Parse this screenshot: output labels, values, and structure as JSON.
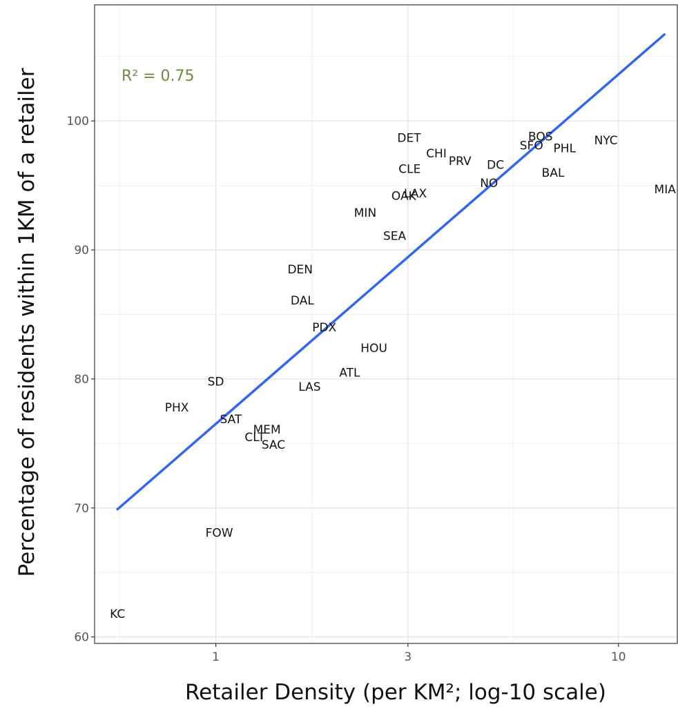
{
  "chart_data": {
    "type": "scatter",
    "xlabel": "Retailer Density (per KM²; log-10 scale)",
    "ylabel": "Percentage of residents within 1KM of a retailer",
    "x_scale": "log10",
    "xlim": [
      0.5,
      14
    ],
    "ylim": [
      59.5,
      109
    ],
    "x_ticks": [
      {
        "value": 1,
        "label": "1"
      },
      {
        "value": 3,
        "label": "3"
      },
      {
        "value": 10,
        "label": "10"
      }
    ],
    "y_ticks": [
      {
        "value": 60,
        "label": "60"
      },
      {
        "value": 70,
        "label": "70"
      },
      {
        "value": 80,
        "label": "80"
      },
      {
        "value": 90,
        "label": "90"
      },
      {
        "value": 100,
        "label": "100"
      }
    ],
    "grid": true,
    "annotation": {
      "text": "R² = 0.75",
      "color": "#6e8b3d"
    },
    "fit_line": {
      "color": "#3366ee",
      "start": [
        0.57,
        69.9
      ],
      "end": [
        13.0,
        106.7
      ]
    },
    "points": [
      {
        "label": "KC",
        "x": 0.57,
        "y": 61.8
      },
      {
        "label": "FOW",
        "x": 1.02,
        "y": 68.1
      },
      {
        "label": "PHX",
        "x": 0.8,
        "y": 77.8
      },
      {
        "label": "SD",
        "x": 1.0,
        "y": 79.8
      },
      {
        "label": "SAT",
        "x": 1.09,
        "y": 76.9
      },
      {
        "label": "MEM",
        "x": 1.34,
        "y": 76.1
      },
      {
        "label": "CLT",
        "x": 1.25,
        "y": 75.5
      },
      {
        "label": "SAC",
        "x": 1.39,
        "y": 74.9
      },
      {
        "label": "LAS",
        "x": 1.71,
        "y": 79.4
      },
      {
        "label": "ATL",
        "x": 2.15,
        "y": 80.5
      },
      {
        "label": "HOU",
        "x": 2.47,
        "y": 82.4
      },
      {
        "label": "PDX",
        "x": 1.86,
        "y": 84.0
      },
      {
        "label": "DAL",
        "x": 1.64,
        "y": 86.1
      },
      {
        "label": "DEN",
        "x": 1.62,
        "y": 88.5
      },
      {
        "label": "SEA",
        "x": 2.78,
        "y": 91.1
      },
      {
        "label": "MIN",
        "x": 2.35,
        "y": 92.9
      },
      {
        "label": "OAK",
        "x": 2.93,
        "y": 94.2
      },
      {
        "label": "LAX",
        "x": 3.13,
        "y": 94.4
      },
      {
        "label": "CLE",
        "x": 3.03,
        "y": 96.3
      },
      {
        "label": "DET",
        "x": 3.02,
        "y": 98.7
      },
      {
        "label": "CHI",
        "x": 3.53,
        "y": 97.5
      },
      {
        "label": "PRV",
        "x": 4.04,
        "y": 96.9
      },
      {
        "label": "DC",
        "x": 4.95,
        "y": 96.6
      },
      {
        "label": "NO",
        "x": 4.77,
        "y": 95.2
      },
      {
        "label": "BOS",
        "x": 6.4,
        "y": 98.8
      },
      {
        "label": "SFO",
        "x": 6.08,
        "y": 98.1
      },
      {
        "label": "PHL",
        "x": 7.35,
        "y": 97.9
      },
      {
        "label": "BAL",
        "x": 6.88,
        "y": 96.0
      },
      {
        "label": "NYC",
        "x": 9.31,
        "y": 98.5
      },
      {
        "label": "MIA",
        "x": 13.05,
        "y": 94.7
      }
    ]
  }
}
